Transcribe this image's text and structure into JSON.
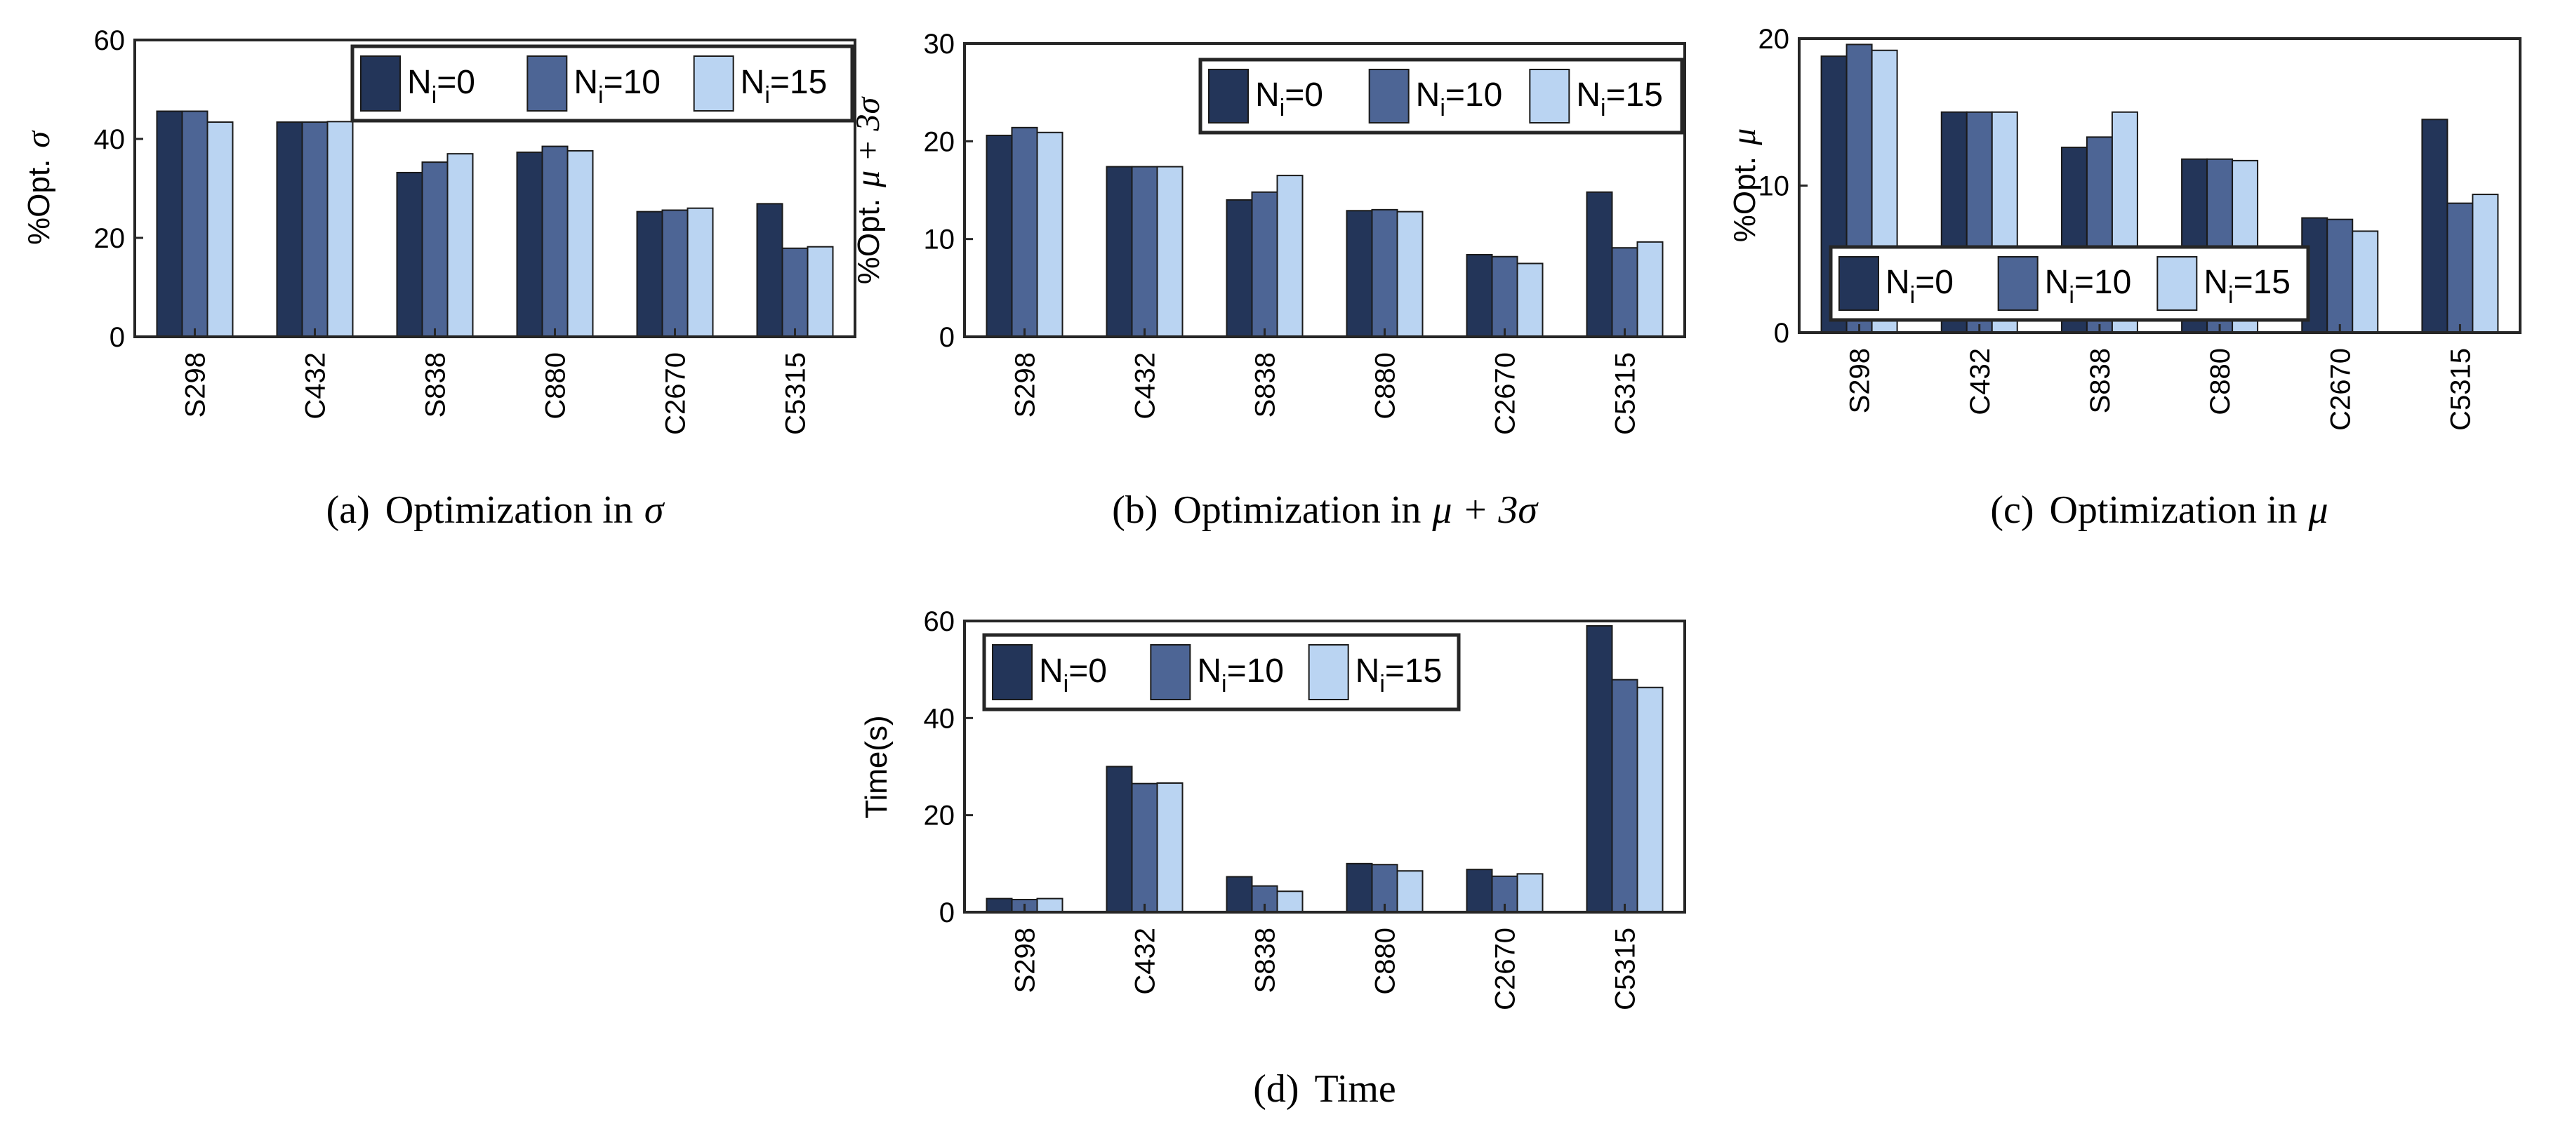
{
  "colors": {
    "series": [
      "#233559",
      "#4d6595",
      "#bad4f2"
    ],
    "stroke": "#1a1a1a",
    "axis": "#262626"
  },
  "chart_data": [
    {
      "id": "a",
      "type": "bar",
      "categories": [
        "S298",
        "C432",
        "S838",
        "C880",
        "C2670",
        "C5315"
      ],
      "series": [
        {
          "name": "N_i=0",
          "values": [
            45.6,
            43.4,
            33.2,
            37.3,
            25.3,
            26.9
          ]
        },
        {
          "name": "N_i=10",
          "values": [
            45.6,
            43.4,
            35.3,
            38.5,
            25.6,
            17.9
          ]
        },
        {
          "name": "N_i=15",
          "values": [
            43.4,
            43.5,
            37.0,
            37.6,
            26.0,
            18.2
          ]
        }
      ],
      "ylabel": "%Opt. σ",
      "ylabel_text": "%Opt.",
      "ylabel_symbol": "σ",
      "ylim": [
        0,
        60
      ],
      "yticks": [
        "0",
        "20",
        "40",
        "60"
      ],
      "legend": {
        "labels": [
          "N",
          "N",
          "N"
        ],
        "subs": [
          "i",
          "i",
          "i"
        ],
        "values": [
          "=0",
          "=10",
          "=15"
        ],
        "position": "top-right"
      },
      "caption": {
        "tag": "(a)",
        "text": "Optimization in",
        "symbol": "σ"
      }
    },
    {
      "id": "b",
      "type": "bar",
      "categories": [
        "S298",
        "C432",
        "S838",
        "C880",
        "C2670",
        "C5315"
      ],
      "series": [
        {
          "name": "N_i=0",
          "values": [
            20.6,
            17.4,
            14.0,
            12.9,
            8.4,
            14.8
          ]
        },
        {
          "name": "N_i=10",
          "values": [
            21.4,
            17.4,
            14.8,
            13.0,
            8.2,
            9.1
          ]
        },
        {
          "name": "N_i=15",
          "values": [
            20.9,
            17.4,
            16.5,
            12.8,
            7.5,
            9.7
          ]
        }
      ],
      "ylabel": "%Opt. μ + 3σ",
      "ylabel_text": "%Opt.",
      "ylabel_symbol": "μ + 3σ",
      "ylim": [
        0,
        30
      ],
      "yticks": [
        "0",
        "10",
        "20",
        "30"
      ],
      "legend": {
        "labels": [
          "N",
          "N",
          "N"
        ],
        "subs": [
          "i",
          "i",
          "i"
        ],
        "values": [
          "=0",
          "=10",
          "=15"
        ],
        "position": "top-right"
      },
      "caption": {
        "tag": "(b)",
        "text": "Optimization in",
        "symbol": "μ + 3σ"
      }
    },
    {
      "id": "c",
      "type": "bar",
      "categories": [
        "S298",
        "C432",
        "S838",
        "C880",
        "C2670",
        "C5315"
      ],
      "series": [
        {
          "name": "N_i=0",
          "values": [
            18.8,
            15.0,
            12.6,
            11.8,
            7.8,
            14.5
          ]
        },
        {
          "name": "N_i=10",
          "values": [
            19.6,
            15.0,
            13.3,
            11.8,
            7.7,
            8.8
          ]
        },
        {
          "name": "N_i=15",
          "values": [
            19.2,
            15.0,
            15.0,
            11.7,
            6.9,
            9.4
          ]
        }
      ],
      "ylabel": "%Opt. μ",
      "ylabel_text": "%Opt.",
      "ylabel_symbol": "μ",
      "ylim": [
        0,
        20
      ],
      "yticks": [
        "0",
        "10",
        "20"
      ],
      "legend": {
        "labels": [
          "N",
          "N",
          "N"
        ],
        "subs": [
          "i",
          "i",
          "i"
        ],
        "values": [
          "=0",
          "=10",
          "=15"
        ],
        "position": "bottom-left"
      },
      "caption": {
        "tag": "(c)",
        "text": "Optimization in",
        "symbol": "μ"
      }
    },
    {
      "id": "d",
      "type": "bar",
      "categories": [
        "S298",
        "C432",
        "S838",
        "C880",
        "C2670",
        "C5315"
      ],
      "series": [
        {
          "name": "N_i=0",
          "values": [
            2.8,
            30.0,
            7.3,
            10.0,
            8.8,
            59.0
          ]
        },
        {
          "name": "N_i=10",
          "values": [
            2.6,
            26.5,
            5.4,
            9.8,
            7.4,
            47.9
          ]
        },
        {
          "name": "N_i=15",
          "values": [
            2.8,
            26.6,
            4.3,
            8.5,
            7.9,
            46.3
          ]
        }
      ],
      "ylabel": "Time(s)",
      "ylabel_text": "Time(s)",
      "ylabel_symbol": "",
      "ylim": [
        0,
        60
      ],
      "yticks": [
        "0",
        "20",
        "40",
        "60"
      ],
      "legend": {
        "labels": [
          "N",
          "N",
          "N"
        ],
        "subs": [
          "i",
          "i",
          "i"
        ],
        "values": [
          "=0",
          "=10",
          "=15"
        ],
        "position": "top-left"
      },
      "caption": {
        "tag": "(d)",
        "text": "Time",
        "symbol": ""
      }
    }
  ]
}
